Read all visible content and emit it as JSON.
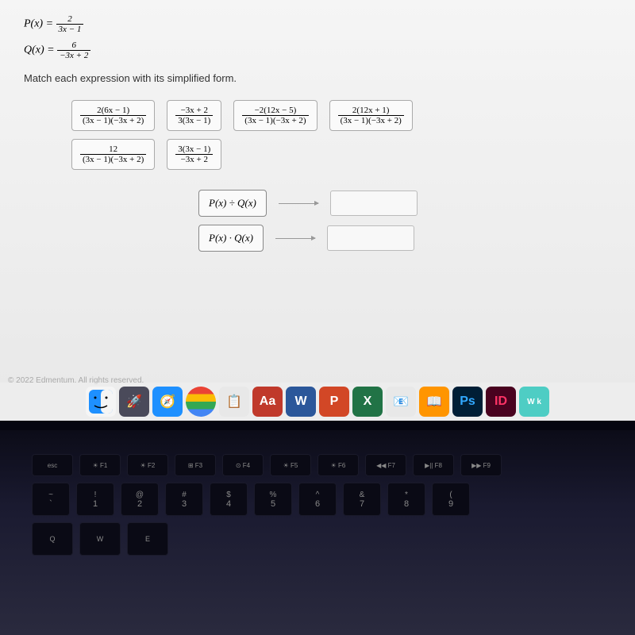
{
  "functions": {
    "P": {
      "label": "P(x) =",
      "num": "2",
      "den": "3x − 1"
    },
    "Q": {
      "label": "Q(x) =",
      "num": "6",
      "den": "−3x + 2"
    }
  },
  "instruction": "Match each expression with its simplified form.",
  "options_row1": [
    {
      "num": "2(6x − 1)",
      "den": "(3x − 1)(−3x + 2)"
    },
    {
      "num": "−3x + 2",
      "den": "3(3x − 1)"
    },
    {
      "num": "−2(12x − 5)",
      "den": "(3x − 1)(−3x + 2)"
    },
    {
      "num": "2(12x + 1)",
      "den": "(3x − 1)(−3x + 2)"
    }
  ],
  "options_row2": [
    {
      "num": "12",
      "den": "(3x − 1)(−3x  + 2)"
    },
    {
      "num": "3(3x − 1)",
      "den": "−3x + 2"
    }
  ],
  "answers": [
    {
      "label": "P(x) ÷ Q(x)"
    },
    {
      "label": "P(x) · Q(x)"
    }
  ],
  "copyright": "© 2022 Edmentum. All rights reserved.",
  "dock": [
    {
      "bg": "#f5f5f5",
      "txt": "",
      "icon": "finder"
    },
    {
      "bg": "#4a4a5a",
      "txt": "🚀"
    },
    {
      "bg": "#1e90ff",
      "txt": "🧭"
    },
    {
      "bg": "linear-gradient(#ea4335 0 25%,#fbbc05 0 50%,#34a853 0 75%,#4285f4 0)",
      "txt": "",
      "round": true
    },
    {
      "bg": "#e8e8e8",
      "txt": "📋"
    },
    {
      "bg": "#c0392b",
      "txt": "Aa"
    },
    {
      "bg": "#2b579a",
      "txt": "W"
    },
    {
      "bg": "#d24726",
      "txt": "P"
    },
    {
      "bg": "#217346",
      "txt": "X"
    },
    {
      "bg": "#e8e8e8",
      "txt": "📧"
    },
    {
      "bg": "#ff9500",
      "txt": "📖"
    },
    {
      "bg": "#001e36",
      "txt": "Ps",
      "color": "#31a8ff"
    },
    {
      "bg": "#49021f",
      "txt": "ID",
      "color": "#ff3366"
    },
    {
      "bg": "#4ecdc4",
      "txt": "W k",
      "small": true
    }
  ],
  "fnkeys": [
    "esc",
    "☀ F1",
    "☀ F2",
    "⊞ F3",
    "⊙ F4",
    "☀ F5",
    "☀ F6",
    "◀◀ F7",
    "▶|| F8",
    "▶▶ F9"
  ],
  "numkeys": [
    {
      "t": "~",
      "b": "`"
    },
    {
      "t": "!",
      "b": "1"
    },
    {
      "t": "@",
      "b": "2"
    },
    {
      "t": "#",
      "b": "3"
    },
    {
      "t": "$",
      "b": "4"
    },
    {
      "t": "%",
      "b": "5"
    },
    {
      "t": "^",
      "b": "6"
    },
    {
      "t": "&",
      "b": "7"
    },
    {
      "t": "*",
      "b": "8"
    },
    {
      "t": "(",
      "b": "9"
    }
  ],
  "letterkeys": [
    "Q",
    "W",
    "E"
  ]
}
